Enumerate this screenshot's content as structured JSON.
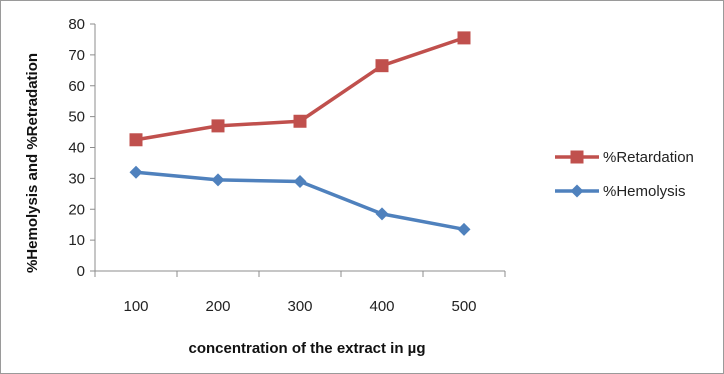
{
  "chart_data": {
    "type": "line",
    "title": "",
    "xlabel": "concentration of the extract  in µg",
    "ylabel": "%Hemolysis and %Retradation",
    "categories": [
      "100",
      "200",
      "300",
      "400",
      "500"
    ],
    "ylim": [
      0,
      80
    ],
    "yticks": [
      0,
      10,
      20,
      30,
      40,
      50,
      60,
      70,
      80
    ],
    "grid": false,
    "legend": "right",
    "series": [
      {
        "name": "%Retardation",
        "values": [
          42.5,
          47,
          48.5,
          66.5,
          75.5
        ],
        "color": "#c0504d",
        "marker": "square"
      },
      {
        "name": "%Hemolysis",
        "values": [
          32,
          29.5,
          29,
          18.5,
          13.5
        ],
        "color": "#4f81bd",
        "marker": "diamond"
      }
    ]
  }
}
